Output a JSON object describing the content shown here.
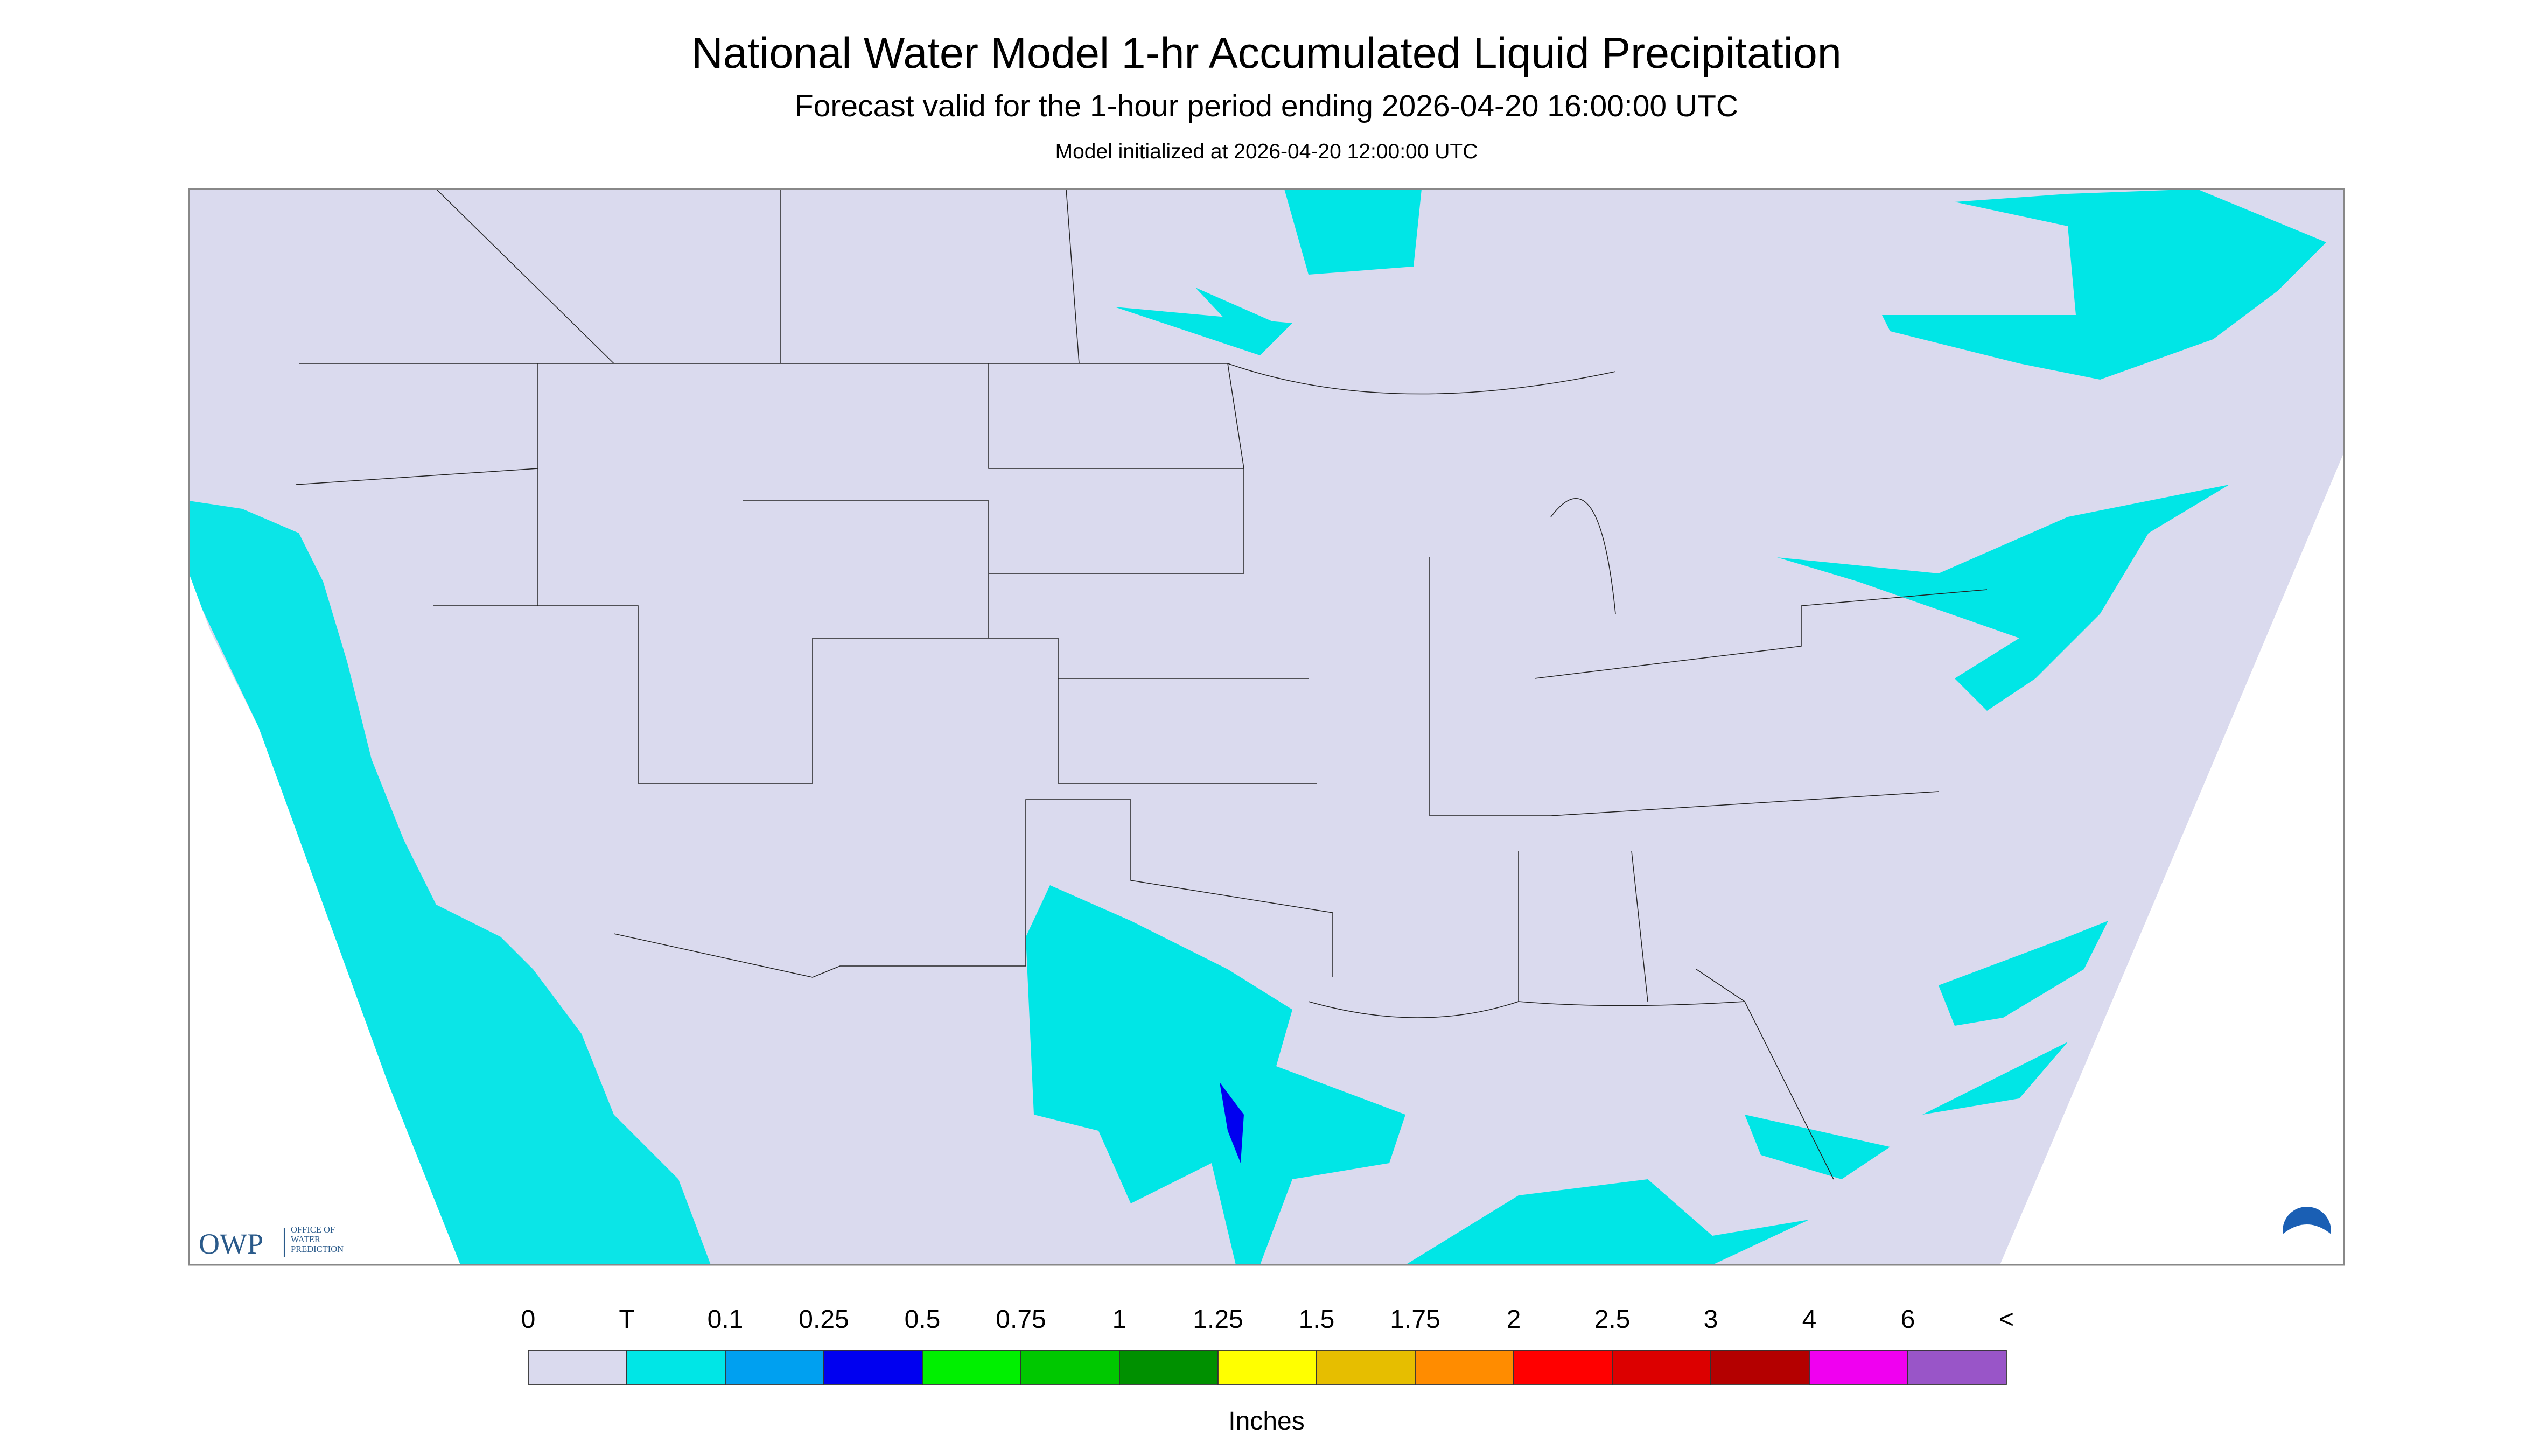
{
  "header": {
    "title": "National Water Model 1-hr Accumulated Liquid Precipitation",
    "subtitle": "Forecast valid for the 1-hour period ending 2026-04-20 16:00:00 UTC",
    "note": "Model initialized at 2026-04-20 12:00:00 UTC"
  },
  "logo": {
    "mark": "OWP",
    "text": [
      "OFFICE OF",
      "WATER",
      "PREDICTION"
    ]
  },
  "legend": {
    "labels": [
      "0",
      "T",
      "0.1",
      "0.25",
      "0.5",
      "0.75",
      "1",
      "1.25",
      "1.5",
      "1.75",
      "2",
      "2.5",
      "3",
      "4",
      "6",
      "<"
    ],
    "colors": [
      "#dadaee",
      "#00e6e6",
      "#00a0f0",
      "#0000f0",
      "#00f000",
      "#00c800",
      "#009000",
      "#ffff00",
      "#e6be00",
      "#ff8c00",
      "#ff0000",
      "#dc0000",
      "#b40000",
      "#f000f0",
      "#9955c8"
    ],
    "units": "Inches"
  }
}
